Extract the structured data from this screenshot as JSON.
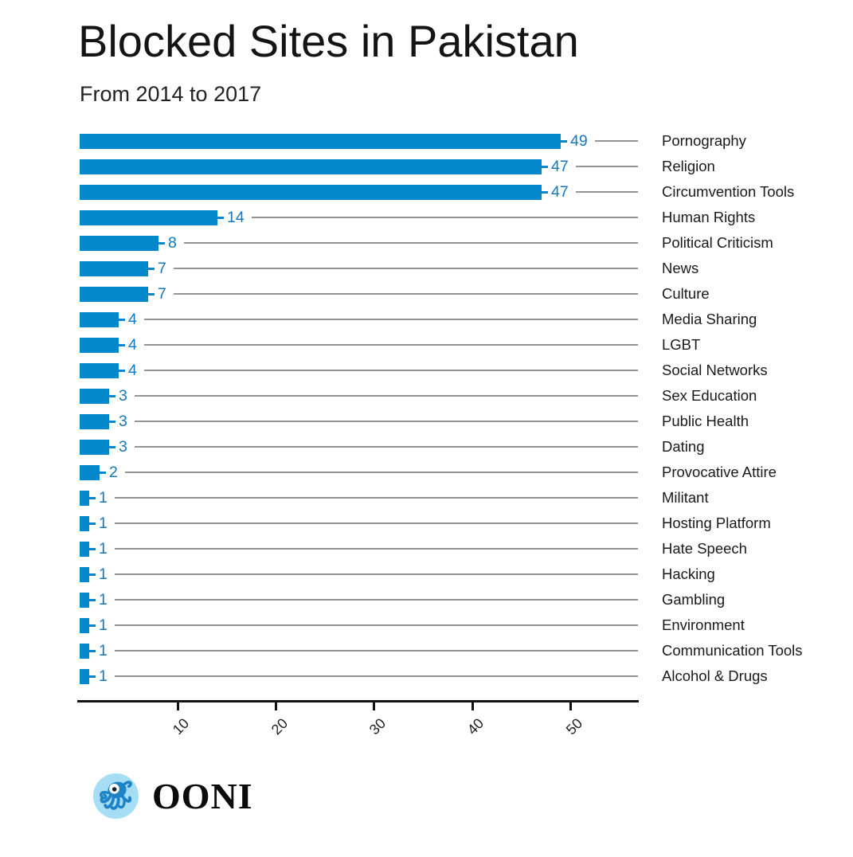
{
  "page": {
    "title": "Blocked Sites in Pakistan",
    "subtitle": "From 2014 to 2017"
  },
  "footer": {
    "logo_text": "OONI",
    "logo_icon": "ooni-octopus-icon"
  },
  "colors": {
    "bar": "#0588cb",
    "value_label": "#1478bf",
    "connector": "#949494",
    "axis": "#111111",
    "logo_circle_bg": "#a6def6",
    "logo_octopus": "#1e82c6",
    "background": "#ffffff"
  },
  "chart_data": {
    "type": "bar",
    "orientation": "horizontal",
    "title": "Blocked Sites in Pakistan",
    "subtitle": "From 2014 to 2017",
    "categories": [
      "Pornography",
      "Religion",
      "Circumvention Tools",
      "Human Rights",
      "Political Criticism",
      "News",
      "Culture",
      "Media Sharing",
      "LGBT",
      "Social Networks",
      "Sex Education",
      "Public Health",
      "Dating",
      "Provocative Attire",
      "Militant",
      "Hosting Platform",
      "Hate Speech",
      "Hacking",
      "Gambling",
      "Environment",
      "Communication Tools",
      "Alcohol & Drugs"
    ],
    "values": [
      49,
      47,
      47,
      14,
      8,
      7,
      7,
      4,
      4,
      4,
      3,
      3,
      3,
      2,
      1,
      1,
      1,
      1,
      1,
      1,
      1,
      1
    ],
    "value_labels_shown": true,
    "category_label_position": "right",
    "x_ticks": [
      10,
      20,
      30,
      40,
      50
    ],
    "xlim": [
      0,
      56.8
    ],
    "x_tick_rotation_deg": -45,
    "grid": false,
    "legend": "none"
  }
}
